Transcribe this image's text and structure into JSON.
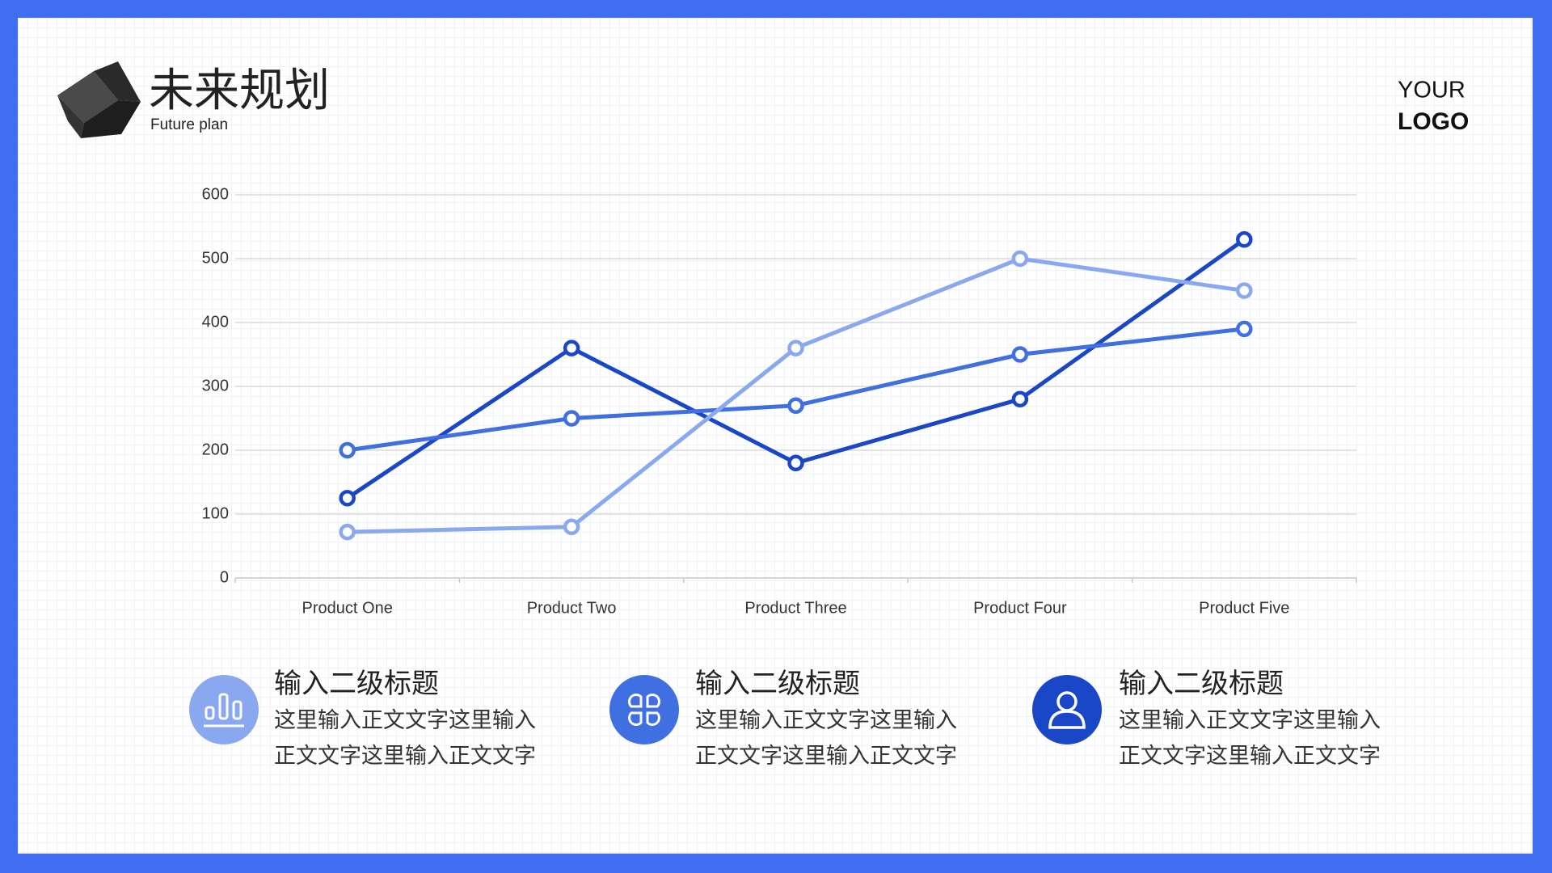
{
  "header": {
    "title": "未来规划",
    "subtitle": "Future plan"
  },
  "logo": {
    "line1": "YOUR",
    "line2": "LOGO"
  },
  "chart_data": {
    "type": "line",
    "categories": [
      "Product One",
      "Product Two",
      "Product Three",
      "Product Four",
      "Product Five"
    ],
    "series": [
      {
        "color": "#1a47c8",
        "values": [
          125,
          360,
          180,
          280,
          530
        ]
      },
      {
        "color": "#3f6fe0",
        "values": [
          200,
          250,
          270,
          350,
          390
        ]
      },
      {
        "color": "#8aa8f0",
        "values": [
          72,
          80,
          360,
          500,
          450
        ]
      }
    ],
    "ylim": [
      0,
      600
    ],
    "yticks": [
      0,
      100,
      200,
      300,
      400,
      500,
      600
    ],
    "grid": true
  },
  "features": [
    {
      "heading": "输入二级标题",
      "lines": [
        "这里输入正文文字这里输入",
        "正文文字这里输入正文文字"
      ]
    },
    {
      "heading": "输入二级标题",
      "lines": [
        "这里输入正文文字这里输入",
        "正文文字这里输入正文文字"
      ]
    },
    {
      "heading": "输入二级标题",
      "lines": [
        "这里输入正文文字这里输入",
        "正文文字这里输入正文文字"
      ]
    }
  ]
}
